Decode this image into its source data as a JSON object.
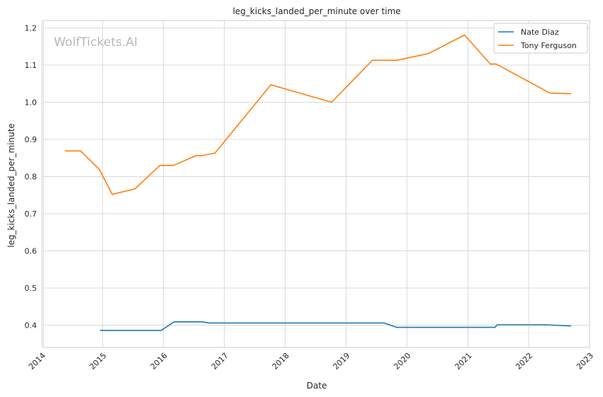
{
  "chart_data": {
    "type": "line",
    "title": "leg_kicks_landed_per_minute over time",
    "xlabel": "Date",
    "ylabel": "leg_kicks_landed_per_minute",
    "xlim": [
      "2014-01-10",
      "2023-01-01"
    ],
    "ylim": [
      0.34,
      1.22
    ],
    "x_ticks": [
      "2014",
      "2015",
      "2016",
      "2017",
      "2018",
      "2019",
      "2020",
      "2021",
      "2022",
      "2023"
    ],
    "y_ticks": [
      0.4,
      0.5,
      0.6,
      0.7,
      0.8,
      0.9,
      1.0,
      1.1,
      1.2
    ],
    "grid": true,
    "legend_position": "top-right",
    "watermark": "WolfTickets.AI",
    "series": [
      {
        "name": "Nate Diaz",
        "color": "#1f77b4",
        "points": [
          [
            "2014-12-20",
            0.386
          ],
          [
            "2015-12-19",
            0.386
          ],
          [
            "2016-03-05",
            0.409
          ],
          [
            "2016-08-20",
            0.409
          ],
          [
            "2016-10-01",
            0.406
          ],
          [
            "2019-08-17",
            0.406
          ],
          [
            "2019-11-02",
            0.394
          ],
          [
            "2021-06-12",
            0.394
          ],
          [
            "2021-06-26",
            0.401
          ],
          [
            "2022-04-10",
            0.401
          ],
          [
            "2022-09-10",
            0.398
          ]
        ]
      },
      {
        "name": "Tony Ferguson",
        "color": "#ff7f0e",
        "points": [
          [
            "2014-05-24",
            0.869
          ],
          [
            "2014-08-23",
            0.869
          ],
          [
            "2014-12-13",
            0.819
          ],
          [
            "2015-02-28",
            0.752
          ],
          [
            "2015-07-15",
            0.767
          ],
          [
            "2015-12-11",
            0.83
          ],
          [
            "2016-03-01",
            0.83
          ],
          [
            "2016-07-13",
            0.856
          ],
          [
            "2016-08-13",
            0.856
          ],
          [
            "2016-11-05",
            0.863
          ],
          [
            "2017-10-07",
            1.047
          ],
          [
            "2018-10-06",
            1.0
          ],
          [
            "2019-06-08",
            1.113
          ],
          [
            "2019-11-02",
            1.113
          ],
          [
            "2020-05-09",
            1.131
          ],
          [
            "2020-12-12",
            1.181
          ],
          [
            "2021-05-15",
            1.103
          ],
          [
            "2021-06-19",
            1.103
          ],
          [
            "2022-05-07",
            1.025
          ],
          [
            "2022-09-10",
            1.023
          ]
        ]
      }
    ]
  }
}
